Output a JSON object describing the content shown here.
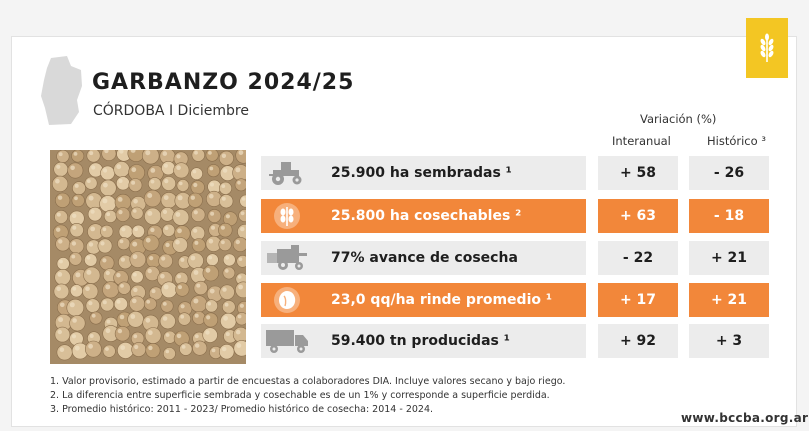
{
  "header": {
    "title": "GARBANZO 2024/25",
    "subtitle": "CÓRDOBA I Diciembre"
  },
  "variation": {
    "label": "Variación (%)",
    "col_interanual": "Interanual",
    "col_historico": "Histórico ³"
  },
  "rows": [
    {
      "label": "25.900 ha sembradas ¹",
      "interanual": "+ 58",
      "historico": "- 26",
      "icon": "tractor-icon",
      "style": "gray"
    },
    {
      "label": "25.800 ha cosechables ²",
      "interanual": "+ 63",
      "historico": "- 18",
      "icon": "plant-icon",
      "style": "orange"
    },
    {
      "label": "77% avance de cosecha",
      "interanual": "- 22",
      "historico": "+ 21",
      "icon": "harvester-icon",
      "style": "gray"
    },
    {
      "label": "23,0 qq/ha rinde promedio ¹",
      "interanual": "+ 17",
      "historico": "+ 21",
      "icon": "grain-icon",
      "style": "orange"
    },
    {
      "label": "59.400 tn producidas ¹",
      "interanual": "+ 92",
      "historico": "+ 3",
      "icon": "truck-icon",
      "style": "gray"
    }
  ],
  "notes": [
    "1. Valor provisorio, estimado a partir de encuestas a colaboradores DIA. Incluye valores secano y bajo riego.",
    "2. La diferencia entre superficie sembrada y cosechable es de un 1% y corresponde a superficie perdida.",
    "3. Promedio histórico: 2011 - 2023/ Promedio histórico de cosecha: 2014 - 2024."
  ],
  "footer": {
    "website": "www.bccba.org.ar"
  },
  "colors": {
    "accent_orange": "#f2873a",
    "row_gray": "#ececec",
    "logo_yellow": "#f3c623"
  }
}
